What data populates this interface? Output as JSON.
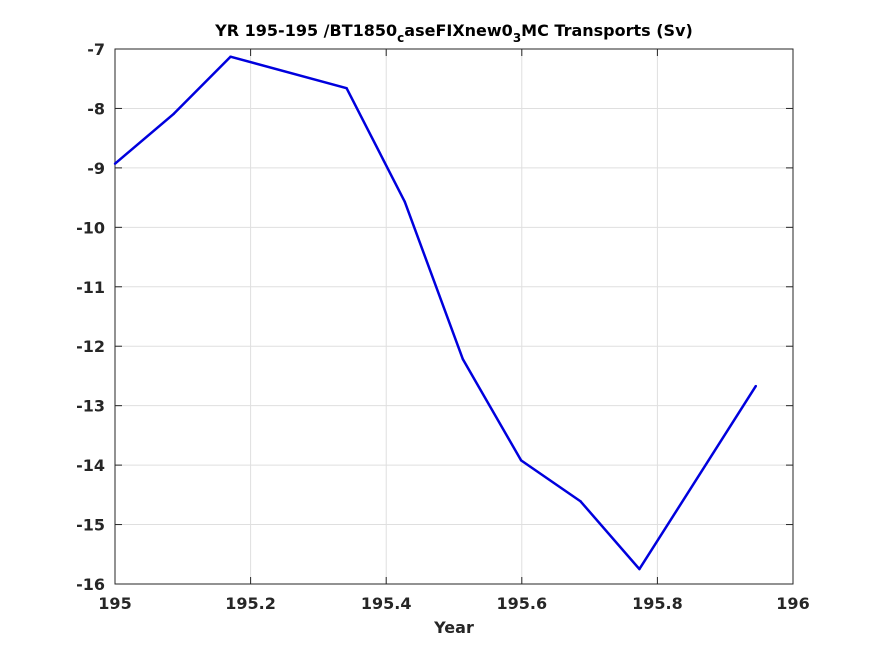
{
  "chart_data": {
    "type": "line",
    "title": "YR 195-195 /BT1850",
    "title_sub1": "c",
    "title_mid": "aseFIXnew0",
    "title_sub2": "3",
    "title_end": "MC Transports (Sv)",
    "xlabel": "Year",
    "ylabel": "",
    "xlim": [
      195,
      196
    ],
    "ylim": [
      -16,
      -7
    ],
    "x_ticks": [
      "195",
      "195.2",
      "195.4",
      "195.6",
      "195.8",
      "196"
    ],
    "y_ticks": [
      "-7",
      "-8",
      "-9",
      "-10",
      "-11",
      "-12",
      "-13",
      "-14",
      "-15",
      "-16"
    ],
    "grid": true,
    "series": [
      {
        "color": "#0000dd",
        "x": [
          195.0,
          195.0867,
          195.1704,
          195.3416,
          195.4274,
          195.5132,
          195.5989,
          195.6867,
          195.7735,
          195.9452
        ],
        "y": [
          -8.93,
          -8.09,
          -7.13,
          -7.66,
          -9.57,
          -12.22,
          -13.92,
          -14.61,
          -15.75,
          -12.67
        ]
      }
    ]
  }
}
